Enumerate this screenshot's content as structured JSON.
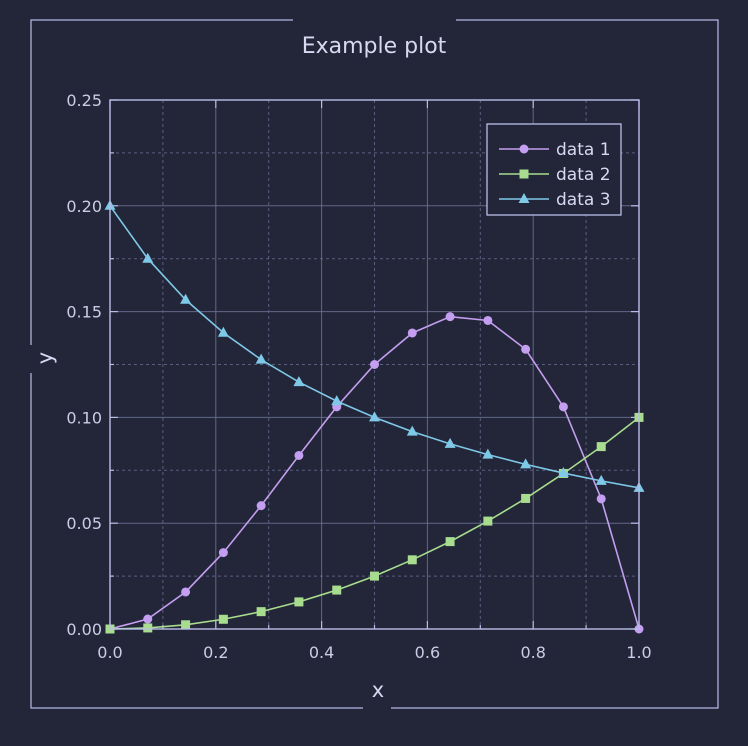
{
  "chart_data": {
    "type": "line",
    "title": "Example plot",
    "xlabel": "x",
    "ylabel": "y",
    "xlim": [
      0,
      1
    ],
    "ylim": [
      0,
      0.25
    ],
    "grid": true,
    "legend_position": "top-right",
    "x_ticks": [
      0.0,
      0.2,
      0.4,
      0.6,
      0.8,
      1.0
    ],
    "x_tick_labels": [
      "0.0",
      "0.2",
      "0.4",
      "0.6",
      "0.8",
      "1.0"
    ],
    "y_ticks": [
      0.0,
      0.05,
      0.1,
      0.15,
      0.2,
      0.25
    ],
    "y_tick_labels": [
      "0.00",
      "0.05",
      "0.10",
      "0.15",
      "0.20",
      "0.25"
    ],
    "x": [
      0.0,
      0.0714,
      0.1429,
      0.2143,
      0.2857,
      0.3571,
      0.4286,
      0.5,
      0.5714,
      0.6429,
      0.7143,
      0.7857,
      0.8571,
      0.9286,
      1.0
    ],
    "series": [
      {
        "name": "data 1",
        "marker": "circle",
        "color": "#c49ef0",
        "values": [
          0.0,
          0.0047,
          0.0175,
          0.0361,
          0.0583,
          0.082,
          0.105,
          0.125,
          0.1399,
          0.1476,
          0.1458,
          0.1322,
          0.105,
          0.0615,
          0.0
        ]
      },
      {
        "name": "data 2",
        "marker": "square",
        "color": "#a8dc8e",
        "values": [
          0.0,
          0.0005,
          0.002,
          0.0046,
          0.0082,
          0.0128,
          0.0184,
          0.025,
          0.0327,
          0.0413,
          0.051,
          0.0617,
          0.0735,
          0.0862,
          0.1
        ]
      },
      {
        "name": "data 3",
        "marker": "triangle",
        "color": "#7ec8e8",
        "values": [
          0.2,
          0.175,
          0.1556,
          0.14,
          0.1273,
          0.1167,
          0.1077,
          0.1,
          0.0933,
          0.0875,
          0.0824,
          0.0778,
          0.0737,
          0.07,
          0.0667
        ]
      }
    ]
  }
}
